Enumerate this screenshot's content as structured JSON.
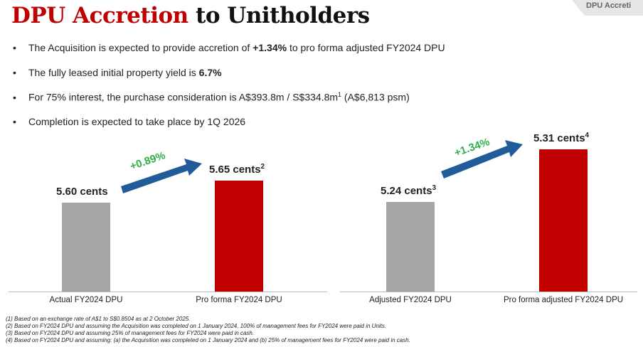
{
  "title": {
    "red": "DPU Accretion",
    "rest": " to Unitholders"
  },
  "corner_tab": "DPU Accreti",
  "bullets": [
    {
      "pre": "The Acquisition is expected to provide accretion of ",
      "bold": "+1.34%",
      "post": " to pro forma adjusted FY2024 DPU"
    },
    {
      "pre": "The fully leased initial property yield is ",
      "bold": "6.7%",
      "post": ""
    },
    {
      "pre": "For 75% interest, the purchase consideration is A$393.8m / S$334.8m",
      "sup": "1",
      "post": " (A$6,813 psm)"
    },
    {
      "pre": "Completion is expected to take place by 1Q 2026",
      "bold": "",
      "post": ""
    }
  ],
  "colors": {
    "grey": "#a6a6a6",
    "red": "#c00000",
    "arrow": "#1f5c99",
    "green": "#2eb04a"
  },
  "chart_data": [
    {
      "type": "bar",
      "categories": [
        "Actual FY2024 DPU",
        "Pro forma FY2024 DPU"
      ],
      "values": [
        5.6,
        5.65
      ],
      "value_labels": [
        "5.60 cents",
        "5.65 cents"
      ],
      "label_sups": [
        "",
        "2"
      ],
      "bar_colors": [
        "#a6a6a6",
        "#c00000"
      ],
      "ylim": [
        5.4,
        5.72
      ],
      "annotation": "+0.89%"
    },
    {
      "type": "bar",
      "categories": [
        "Adjusted FY2024 DPU",
        "Pro forma adjusted FY2024 DPU"
      ],
      "values": [
        5.24,
        5.31
      ],
      "value_labels": [
        "5.24 cents",
        "5.31 cents"
      ],
      "label_sups": [
        "3",
        "4"
      ],
      "bar_colors": [
        "#a6a6a6",
        "#c00000"
      ],
      "ylim": [
        5.12,
        5.31
      ],
      "annotation": "+1.34%"
    }
  ],
  "footnotes": [
    "(1)  Based on an exchange rate of A$1 to S$0.8504 as at 2 October 2025.",
    "(2)  Based on FY2024 DPU and assuming the Acquisition was completed on 1 January 2024. 100% of management fees for FY2024 were paid in Units.",
    "(3)  Based on FY2024 DPU and assuming 25% of management fees for FY2024 were paid in cash.",
    "(4)  Based on FY2024 DPU and assuming: (a) the Acquisition was completed on 1 January 2024 and (b) 25% of management fees for FY2024 were paid in cash."
  ]
}
